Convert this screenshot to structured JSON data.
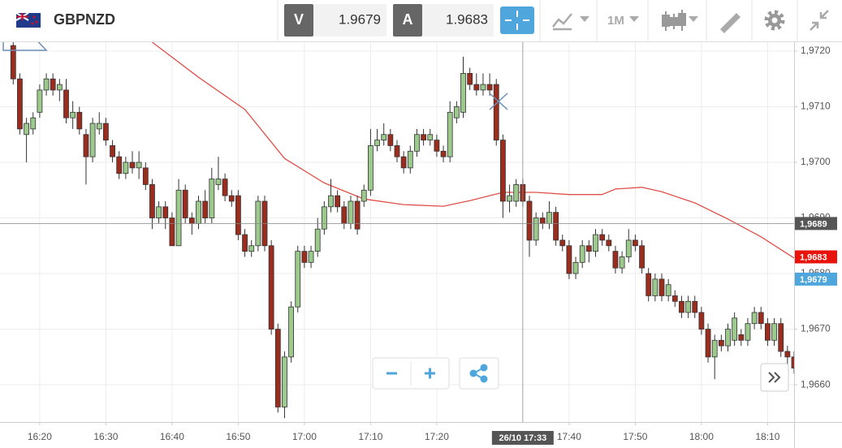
{
  "header": {
    "symbol": "GBPNZD",
    "sell_label": "V",
    "sell_price": "1.9679",
    "buy_label": "A",
    "buy_price": "1.9683",
    "timeframe": "1M"
  },
  "chart_data": {
    "type": "candlestick",
    "x": [
      "16:16",
      "16:17",
      "16:18",
      "16:19",
      "16:20",
      "16:21",
      "16:22",
      "16:23",
      "16:24",
      "16:25",
      "16:26",
      "16:27",
      "16:28",
      "16:29",
      "16:30",
      "16:31",
      "16:32",
      "16:33",
      "16:34",
      "16:35",
      "16:36",
      "16:37",
      "16:38",
      "16:39",
      "16:40",
      "16:41",
      "16:42",
      "16:43",
      "16:44",
      "16:45",
      "16:46",
      "16:47",
      "16:48",
      "16:49",
      "16:50",
      "16:51",
      "16:52",
      "16:53",
      "16:54",
      "16:55",
      "16:56",
      "16:57",
      "16:58",
      "16:59",
      "17:00",
      "17:01",
      "17:02",
      "17:03",
      "17:04",
      "17:05",
      "17:06",
      "17:07",
      "17:08",
      "17:09",
      "17:10",
      "17:11",
      "17:12",
      "17:13",
      "17:14",
      "17:15",
      "17:16",
      "17:17",
      "17:18",
      "17:19",
      "17:20",
      "17:21",
      "17:22",
      "17:23",
      "17:24",
      "17:25",
      "17:26",
      "17:27",
      "17:28",
      "17:29",
      "17:30",
      "17:31",
      "17:32",
      "17:33",
      "17:34",
      "17:35",
      "17:36",
      "17:37",
      "17:38",
      "17:39",
      "17:40",
      "17:41",
      "17:42",
      "17:43",
      "17:44",
      "17:45",
      "17:46",
      "17:47",
      "17:48",
      "17:49",
      "17:50",
      "17:51",
      "17:52",
      "17:53",
      "17:54",
      "17:55",
      "17:56",
      "17:57",
      "17:58",
      "17:59",
      "18:00",
      "18:01",
      "18:02",
      "18:03",
      "18:04",
      "18:05",
      "18:06",
      "18:07",
      "18:08",
      "18:09",
      "18:10",
      "18:11",
      "18:12",
      "18:13",
      "18:14"
    ],
    "open": [
      1.9721,
      1.9715,
      1.9705,
      1.9706,
      1.9709,
      1.9713,
      1.9715,
      1.9713,
      1.9713,
      1.9708,
      1.9709,
      1.9705,
      1.9701,
      1.9706,
      1.9707,
      1.9703,
      1.9701,
      1.9698,
      1.97,
      1.9699,
      1.9699,
      1.9696,
      1.969,
      1.9692,
      1.969,
      1.9685,
      1.9695,
      1.969,
      1.9689,
      1.9693,
      1.969,
      1.9696,
      1.9697,
      1.9694,
      1.9694,
      1.9687,
      1.9684,
      1.9685,
      1.9693,
      1.9685,
      1.967,
      1.9656,
      1.9665,
      1.9674,
      1.9684,
      1.9682,
      1.9684,
      1.9688,
      1.9692,
      1.9694,
      1.9692,
      1.9689,
      1.9693,
      1.9693,
      1.9695,
      1.9703,
      1.9704,
      1.9705,
      1.9703,
      1.9701,
      1.9699,
      1.9702,
      1.9705,
      1.9704,
      1.9704,
      1.9702,
      1.9701,
      1.9708,
      1.9709,
      1.9716,
      1.9714,
      1.9713,
      1.9714,
      1.9714,
      1.9704,
      1.9693,
      1.9693,
      1.9696,
      1.9693,
      1.9686,
      1.969,
      1.9689,
      1.9691,
      1.9686,
      1.9685,
      1.968,
      1.9682,
      1.9685,
      1.9684,
      1.9687,
      1.9686,
      1.9684,
      1.9681,
      1.9683,
      1.9686,
      1.9685,
      1.968,
      1.9676,
      1.9679,
      1.9676,
      1.9676,
      1.9675,
      1.9673,
      1.9675,
      1.9673,
      1.967,
      1.9665,
      1.9668,
      1.9667,
      1.9668,
      1.9669,
      1.9668,
      1.9671,
      1.9673,
      1.9671,
      1.9668,
      1.9671,
      1.9666,
      1.9665
    ],
    "high": [
      1.9722,
      1.9716,
      1.9708,
      1.9709,
      1.9714,
      1.9716,
      1.9716,
      1.9715,
      1.9715,
      1.9711,
      1.971,
      1.9706,
      1.9708,
      1.9709,
      1.9708,
      1.9704,
      1.9702,
      1.9701,
      1.9702,
      1.9702,
      1.97,
      1.9697,
      1.9693,
      1.9693,
      1.9691,
      1.9697,
      1.9696,
      1.9691,
      1.9694,
      1.9695,
      1.9699,
      1.9701,
      1.9698,
      1.9695,
      1.9695,
      1.9688,
      1.9686,
      1.9694,
      1.9694,
      1.9686,
      1.9671,
      1.9666,
      1.9675,
      1.9685,
      1.9685,
      1.9685,
      1.969,
      1.9693,
      1.9697,
      1.9695,
      1.9693,
      1.9694,
      1.9694,
      1.9696,
      1.9706,
      1.9706,
      1.9707,
      1.9706,
      1.9704,
      1.9702,
      1.9703,
      1.9706,
      1.9706,
      1.9706,
      1.9705,
      1.9703,
      1.9711,
      1.9711,
      1.9719,
      1.9717,
      1.9716,
      1.9716,
      1.9716,
      1.9715,
      1.9705,
      1.9696,
      1.9697,
      1.9697,
      1.9694,
      1.9691,
      1.9691,
      1.9693,
      1.9692,
      1.9687,
      1.9686,
      1.9683,
      1.9686,
      1.9686,
      1.9688,
      1.9688,
      1.9687,
      1.9685,
      1.9684,
      1.9688,
      1.9687,
      1.9686,
      1.9681,
      1.968,
      1.968,
      1.9679,
      1.9677,
      1.9676,
      1.9676,
      1.9676,
      1.9674,
      1.9671,
      1.9669,
      1.9669,
      1.9671,
      1.9673,
      1.967,
      1.9672,
      1.9674,
      1.9674,
      1.9672,
      1.9672,
      1.9672,
      1.9667,
      1.9666
    ],
    "low": [
      1.9714,
      1.9705,
      1.97,
      1.9705,
      1.9708,
      1.9712,
      1.9712,
      1.9711,
      1.9707,
      1.9706,
      1.9705,
      1.9696,
      1.97,
      1.9705,
      1.9703,
      1.97,
      1.9697,
      1.9697,
      1.9698,
      1.9697,
      1.9695,
      1.9688,
      1.9689,
      1.9688,
      1.9685,
      1.9685,
      1.9689,
      1.9687,
      1.9688,
      1.9689,
      1.9689,
      1.9695,
      1.9693,
      1.9692,
      1.9686,
      1.9683,
      1.9683,
      1.9684,
      1.9684,
      1.9669,
      1.9655,
      1.9654,
      1.9664,
      1.9673,
      1.9681,
      1.9681,
      1.9683,
      1.9687,
      1.9691,
      1.9691,
      1.9688,
      1.9688,
      1.9687,
      1.9692,
      1.9694,
      1.9702,
      1.9703,
      1.9702,
      1.97,
      1.9698,
      1.9698,
      1.9701,
      1.9703,
      1.9703,
      1.9701,
      1.97,
      1.97,
      1.9707,
      1.9708,
      1.9713,
      1.9712,
      1.9712,
      1.9712,
      1.9703,
      1.969,
      1.9691,
      1.9692,
      1.9692,
      1.9683,
      1.9685,
      1.9688,
      1.9688,
      1.9685,
      1.9684,
      1.9679,
      1.9679,
      1.9681,
      1.9682,
      1.9683,
      1.9685,
      1.9684,
      1.968,
      1.968,
      1.9682,
      1.9684,
      1.968,
      1.9675,
      1.9675,
      1.9675,
      1.9675,
      1.9674,
      1.9672,
      1.9672,
      1.9672,
      1.9669,
      1.9664,
      1.9661,
      1.9666,
      1.9666,
      1.9667,
      1.9667,
      1.9667,
      1.967,
      1.967,
      1.9667,
      1.9667,
      1.9665,
      1.9661,
      1.9662
    ],
    "close": [
      1.9715,
      1.9706,
      1.9707,
      1.9708,
      1.9713,
      1.9715,
      1.9713,
      1.9714,
      1.9708,
      1.9709,
      1.9706,
      1.9701,
      1.9707,
      1.9707,
      1.9704,
      1.9701,
      1.9698,
      1.97,
      1.9699,
      1.97,
      1.9696,
      1.969,
      1.9692,
      1.969,
      1.9685,
      1.9695,
      1.969,
      1.9689,
      1.9693,
      1.969,
      1.9697,
      1.9697,
      1.9694,
      1.9693,
      1.9687,
      1.9684,
      1.9685,
      1.9693,
      1.9685,
      1.967,
      1.9656,
      1.9665,
      1.9674,
      1.9684,
      1.9682,
      1.9684,
      1.9688,
      1.9692,
      1.9694,
      1.9692,
      1.9689,
      1.9693,
      1.9688,
      1.9695,
      1.9703,
      1.9704,
      1.9705,
      1.9703,
      1.9701,
      1.9699,
      1.9702,
      1.9705,
      1.9704,
      1.9705,
      1.9702,
      1.9701,
      1.9709,
      1.971,
      1.9716,
      1.9714,
      1.9713,
      1.9714,
      1.9713,
      1.9704,
      1.9693,
      1.9694,
      1.9696,
      1.9693,
      1.9686,
      1.969,
      1.9689,
      1.9691,
      1.9686,
      1.9685,
      1.968,
      1.9682,
      1.9685,
      1.9684,
      1.9687,
      1.9686,
      1.9685,
      1.9681,
      1.9683,
      1.9686,
      1.9685,
      1.9681,
      1.9676,
      1.9679,
      1.9676,
      1.9678,
      1.9675,
      1.9673,
      1.9675,
      1.9673,
      1.967,
      1.9665,
      1.9668,
      1.9667,
      1.967,
      1.9672,
      1.9668,
      1.9671,
      1.9673,
      1.9671,
      1.9668,
      1.9671,
      1.9666,
      1.9665,
      1.9663
    ],
    "up_color": "#9cc98c",
    "down_color": "#9b2d1f",
    "moving_average": {
      "color": "#e0504a",
      "x": [
        "16:37",
        "16:44",
        "16:51",
        "16:57",
        "17:03",
        "17:09",
        "17:15",
        "17:21",
        "17:25",
        "17:30",
        "17:35",
        "17:40",
        "17:45",
        "17:47",
        "17:51",
        "17:54",
        "17:59",
        "18:04",
        "18:09",
        "18:14"
      ],
      "values": [
        1.97216,
        1.97153,
        1.97095,
        1.97007,
        1.96963,
        1.96934,
        1.96924,
        1.96921,
        1.96931,
        1.96946,
        1.96946,
        1.96942,
        1.96942,
        1.96952,
        1.96955,
        1.96947,
        1.96927,
        1.96898,
        1.96866,
        1.96828
      ]
    },
    "xlim": [
      "16:14",
      "18:14"
    ],
    "xticks": [
      "16:20",
      "16:30",
      "16:40",
      "16:50",
      "17:00",
      "17:10",
      "17:20",
      "17:40",
      "17:50",
      "18:00",
      "18:10"
    ],
    "ylim": [
      1.96533,
      1.97216
    ],
    "yticks": [
      {
        "value": 1.966,
        "label": "1,9660"
      },
      {
        "value": 1.967,
        "label": "1,9670"
      },
      {
        "value": 1.968,
        "label": "1,9680"
      },
      {
        "value": 1.969,
        "label": "1,9690"
      },
      {
        "value": 1.97,
        "label": "1,9700"
      },
      {
        "value": 1.971,
        "label": "1,9710"
      },
      {
        "value": 1.972,
        "label": "1,9720"
      }
    ],
    "grid": true,
    "crosshair": {
      "x": "17:33",
      "y": 1.9689,
      "x_label": "26/10 17:33",
      "y_label": "1,9689"
    },
    "price_markers": [
      {
        "value": 1.9683,
        "label": "1,9683",
        "color": "#e8140c"
      },
      {
        "value": 1.9679,
        "label": "1,9679",
        "color": "#4ea6dc"
      }
    ]
  }
}
